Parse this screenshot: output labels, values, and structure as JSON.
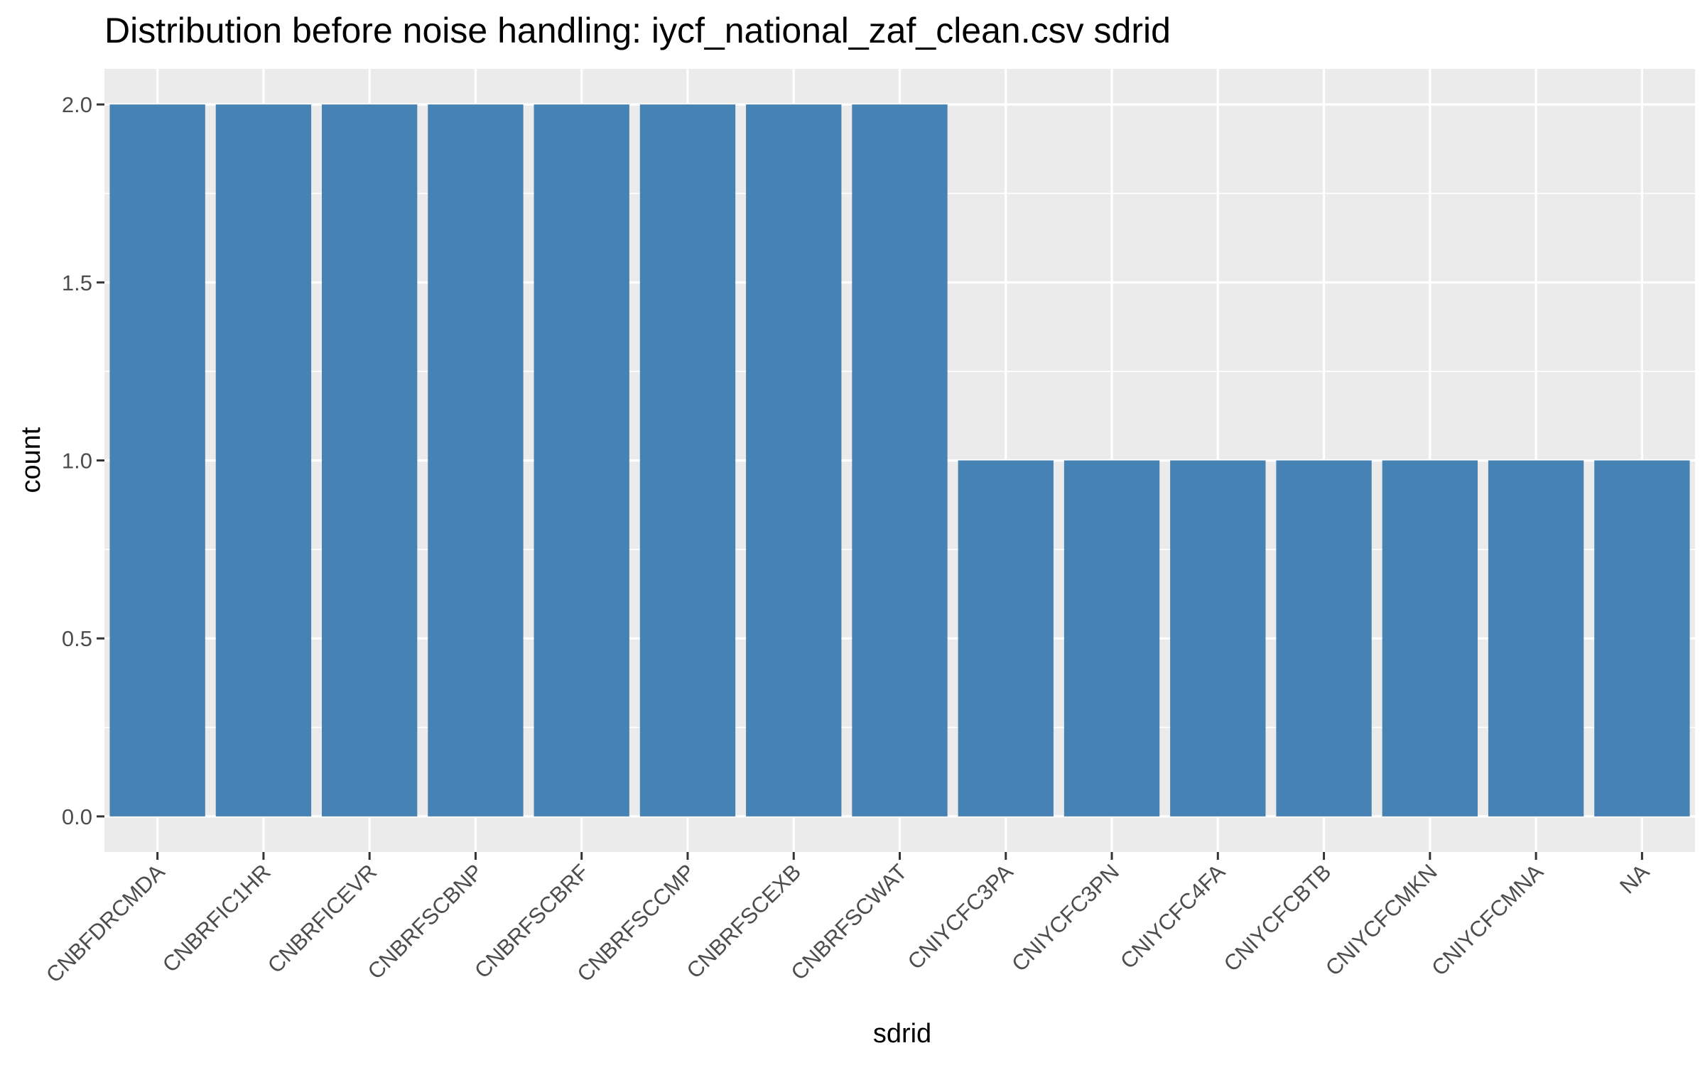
{
  "chart_data": {
    "type": "bar",
    "title": "Distribution before noise handling: iycf_national_zaf_clean.csv sdrid",
    "xlabel": "sdrid",
    "ylabel": "count",
    "categories": [
      "CNBFDRCMDA",
      "CNBRFIC1HR",
      "CNBRFICEVR",
      "CNBRFSCBNP",
      "CNBRFSCBRF",
      "CNBRFSCCMP",
      "CNBRFSCEXB",
      "CNBRFSCWAT",
      "CNIYCFC3PA",
      "CNIYCFC3PN",
      "CNIYCFC4FA",
      "CNIYCFCBTB",
      "CNIYCFCMKN",
      "CNIYCFCMNA",
      "NA"
    ],
    "values": [
      2,
      2,
      2,
      2,
      2,
      2,
      2,
      2,
      1,
      1,
      1,
      1,
      1,
      1,
      1
    ],
    "ylim": [
      -0.1,
      2.1
    ],
    "yticks": [
      "0.0",
      "0.5",
      "1.0",
      "1.5",
      "2.0"
    ],
    "bar_color": "#4682b4",
    "panel_color": "#ebebeb",
    "grid": true,
    "legend": "none"
  }
}
